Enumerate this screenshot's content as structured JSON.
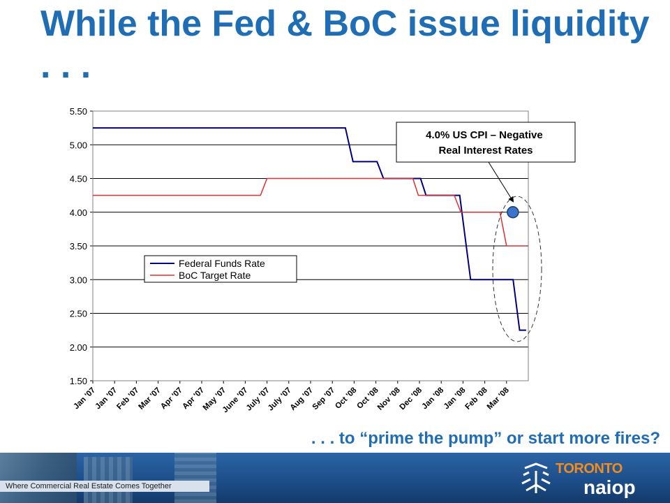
{
  "slide": {
    "title": "While the Fed & BoC issue liquidity . . .",
    "subtitle": ". . . to “prime the pump” or start more fires?",
    "tagline": "Where Commercial Real Estate Comes Together",
    "logo": {
      "word1": "TORONTO",
      "word2": "naiop"
    }
  },
  "colors": {
    "title": "#1f6db5",
    "fed": "#000080",
    "boc": "#e03030",
    "marker": "#3b74c8"
  },
  "chart_data": {
    "type": "line",
    "title": "",
    "xlabel": "",
    "ylabel": "",
    "ylim": [
      1.5,
      5.5
    ],
    "yticks": [
      "5.50",
      "5.00",
      "4.50",
      "4.00",
      "3.50",
      "3.00",
      "2.50",
      "2.00",
      "1.50"
    ],
    "grid": true,
    "legend_position": "left, middle",
    "x_tick_labels": [
      "Jan '07",
      "Jan '07",
      "Feb '07",
      "Mar '07",
      "Apr '07",
      "Apr '07",
      "May '07",
      "June '07",
      "July '07",
      "July '07",
      "Aug '07",
      "Sep '07",
      "Oct '08",
      "Oct '08",
      "Nov '08",
      "Dec '08",
      "Jan '08",
      "Jan '08",
      "Feb '08",
      "Mar '08"
    ],
    "series": [
      {
        "name": "Federal Funds Rate",
        "points": [
          [
            0,
            5.25
          ],
          [
            11.6,
            5.25
          ],
          [
            11.95,
            4.75
          ],
          [
            13.05,
            4.75
          ],
          [
            13.35,
            4.5
          ],
          [
            15.05,
            4.5
          ],
          [
            15.3,
            4.25
          ],
          [
            16.85,
            4.25
          ],
          [
            17.35,
            3.0
          ],
          [
            19.3,
            3.0
          ],
          [
            19.6,
            2.25
          ],
          [
            19.9,
            2.25
          ]
        ]
      },
      {
        "name": "BoC Target Rate",
        "points": [
          [
            0,
            4.25
          ],
          [
            7.7,
            4.25
          ],
          [
            8.0,
            4.5
          ],
          [
            14.7,
            4.5
          ],
          [
            14.95,
            4.25
          ],
          [
            16.6,
            4.25
          ],
          [
            16.9,
            4.0
          ],
          [
            18.7,
            4.0
          ],
          [
            19.0,
            3.5
          ],
          [
            19.9,
            3.5
          ]
        ]
      }
    ],
    "annotations": [
      {
        "text": "4.0% US CPI – Negative Real Interest Rates",
        "x": 19.9,
        "y": 4.0
      }
    ]
  }
}
